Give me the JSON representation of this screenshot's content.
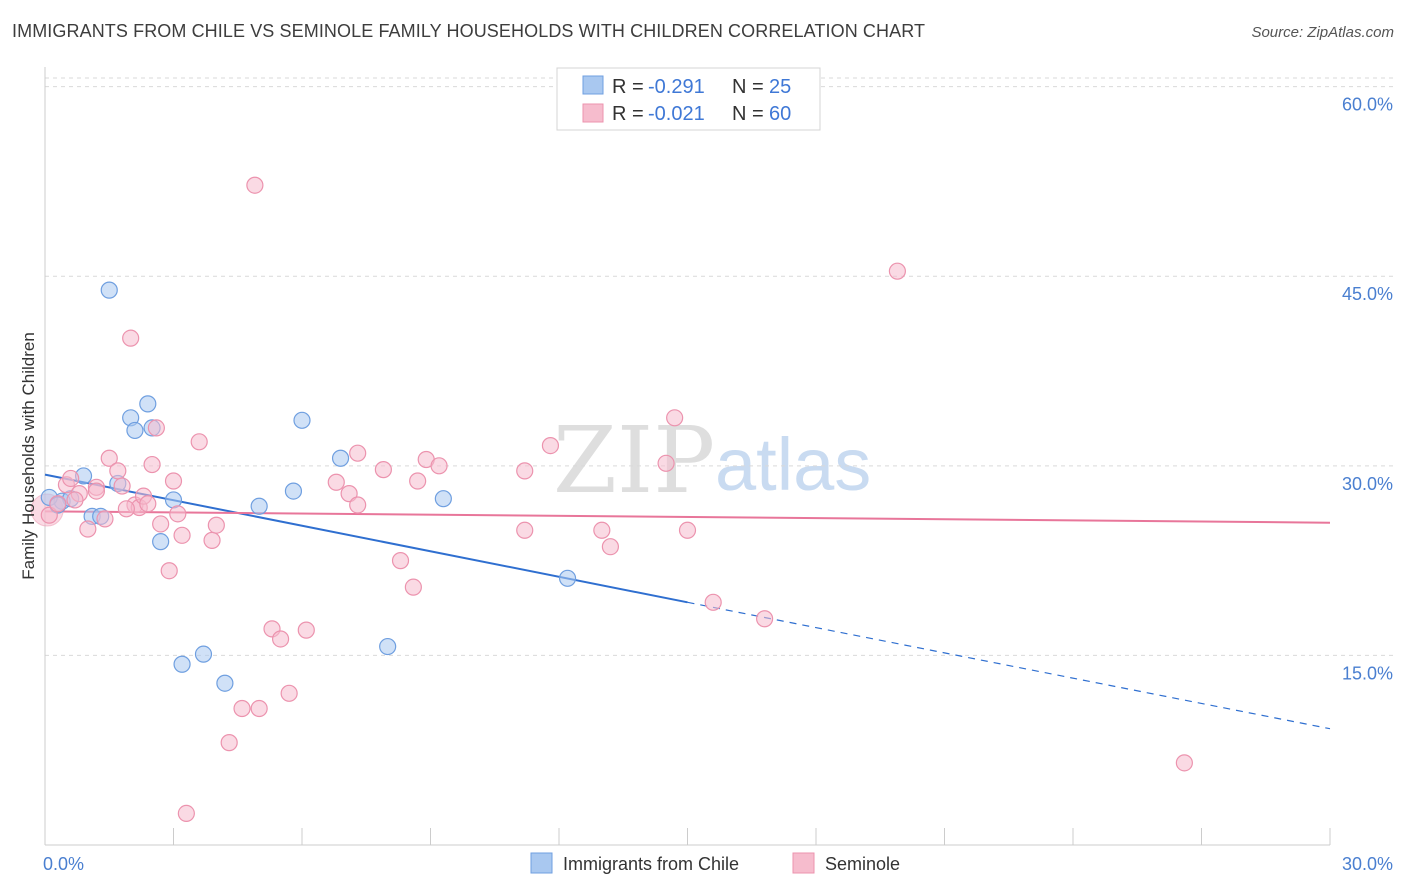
{
  "title": "IMMIGRANTS FROM CHILE VS SEMINOLE FAMILY HOUSEHOLDS WITH CHILDREN CORRELATION CHART",
  "source": "Source: ZipAtlas.com",
  "watermark": {
    "zip": "ZIP",
    "atlas": "atlas"
  },
  "colors": {
    "blue_fill": "#a9c8f0",
    "blue_stroke": "#6f9fe0",
    "blue_line": "#2f6fd0",
    "pink_fill": "#f6bccd",
    "pink_stroke": "#ec93ae",
    "pink_line": "#e8769a",
    "grid": "#d9d9d9",
    "axis_text": "#4a7fd0"
  },
  "legend": {
    "rows": [
      {
        "r_label": "R =",
        "r_value": "-0.291",
        "n_label": "N =",
        "n_value": "25"
      },
      {
        "r_label": "R =",
        "r_value": "-0.021",
        "n_label": "N =",
        "n_value": "60"
      }
    ]
  },
  "chart_data": {
    "type": "scatter",
    "title": "IMMIGRANTS FROM CHILE VS SEMINOLE FAMILY HOUSEHOLDS WITH CHILDREN CORRELATION CHART",
    "xlabel": "",
    "ylabel": "Family Households with Children",
    "xlim": [
      0,
      30
    ],
    "ylim": [
      0,
      61
    ],
    "x_tick_labels": [
      "0.0%",
      "30.0%"
    ],
    "y_ticks": [
      15,
      30,
      45,
      60
    ],
    "y_tick_labels": [
      "15.0%",
      "30.0%",
      "45.0%",
      "60.0%"
    ],
    "series": [
      {
        "name": "Immigrants from Chile",
        "color": "blue",
        "r": -0.291,
        "n": 25,
        "trend": {
          "x0": 0,
          "y0": 29.3,
          "x1": 15,
          "y1": 19.2,
          "dash_to_x": 30,
          "dash_to_y": 9.2
        },
        "points": [
          [
            0.4,
            27.2
          ],
          [
            0.6,
            27.4
          ],
          [
            0.9,
            29.2
          ],
          [
            1.1,
            26.0
          ],
          [
            1.3,
            26.0
          ],
          [
            1.5,
            43.9
          ],
          [
            1.7,
            28.6
          ],
          [
            2.0,
            33.8
          ],
          [
            2.1,
            32.8
          ],
          [
            2.4,
            34.9
          ],
          [
            2.5,
            33.0
          ],
          [
            2.7,
            24.0
          ],
          [
            3.0,
            27.3
          ],
          [
            3.2,
            14.3
          ],
          [
            3.7,
            15.1
          ],
          [
            4.2,
            12.8
          ],
          [
            5.0,
            26.8
          ],
          [
            5.8,
            28.0
          ],
          [
            6.0,
            33.6
          ],
          [
            6.9,
            30.6
          ],
          [
            8.0,
            15.7
          ],
          [
            9.3,
            27.4
          ],
          [
            12.2,
            21.1
          ],
          [
            0.1,
            27.5
          ],
          [
            0.3,
            26.9
          ]
        ]
      },
      {
        "name": "Seminole",
        "color": "pink",
        "r": -0.021,
        "n": 60,
        "trend": {
          "x0": 0,
          "y0": 26.4,
          "x1": 30,
          "y1": 25.5
        },
        "points": [
          [
            0.1,
            26.1
          ],
          [
            0.3,
            27.0
          ],
          [
            0.5,
            28.5
          ],
          [
            0.6,
            29.0
          ],
          [
            0.8,
            27.8
          ],
          [
            1.0,
            25.0
          ],
          [
            1.2,
            28.3
          ],
          [
            1.4,
            25.8
          ],
          [
            1.5,
            30.6
          ],
          [
            1.7,
            29.6
          ],
          [
            1.8,
            28.4
          ],
          [
            2.0,
            40.1
          ],
          [
            2.1,
            26.9
          ],
          [
            2.2,
            26.7
          ],
          [
            2.3,
            27.6
          ],
          [
            2.5,
            30.1
          ],
          [
            2.6,
            33.0
          ],
          [
            2.7,
            25.4
          ],
          [
            2.9,
            21.7
          ],
          [
            3.0,
            28.8
          ],
          [
            3.1,
            26.2
          ],
          [
            3.2,
            24.5
          ],
          [
            3.6,
            31.9
          ],
          [
            3.9,
            24.1
          ],
          [
            4.0,
            25.3
          ],
          [
            4.3,
            8.1
          ],
          [
            4.6,
            10.8
          ],
          [
            4.9,
            52.2
          ],
          [
            5.0,
            10.8
          ],
          [
            5.3,
            17.1
          ],
          [
            5.5,
            16.3
          ],
          [
            5.7,
            12.0
          ],
          [
            6.1,
            17.0
          ],
          [
            6.8,
            28.7
          ],
          [
            7.1,
            27.8
          ],
          [
            7.3,
            31.0
          ],
          [
            7.3,
            26.9
          ],
          [
            7.9,
            29.7
          ],
          [
            8.3,
            22.5
          ],
          [
            8.6,
            20.4
          ],
          [
            8.7,
            28.8
          ],
          [
            8.9,
            30.5
          ],
          [
            9.2,
            30.0
          ],
          [
            11.2,
            29.6
          ],
          [
            11.2,
            24.9
          ],
          [
            11.8,
            31.6
          ],
          [
            13.0,
            24.9
          ],
          [
            13.2,
            23.6
          ],
          [
            14.7,
            33.8
          ],
          [
            14.5,
            30.2
          ],
          [
            15.0,
            24.9
          ],
          [
            15.6,
            19.2
          ],
          [
            16.8,
            17.9
          ],
          [
            19.9,
            45.4
          ],
          [
            26.6,
            6.5
          ],
          [
            3.3,
            2.5
          ],
          [
            1.2,
            28.0
          ],
          [
            0.7,
            27.3
          ],
          [
            2.4,
            27.0
          ],
          [
            1.9,
            26.6
          ]
        ]
      }
    ]
  },
  "bottom_legend": [
    {
      "label": "Immigrants from Chile",
      "color": "blue"
    },
    {
      "label": "Seminole",
      "color": "pink"
    }
  ]
}
